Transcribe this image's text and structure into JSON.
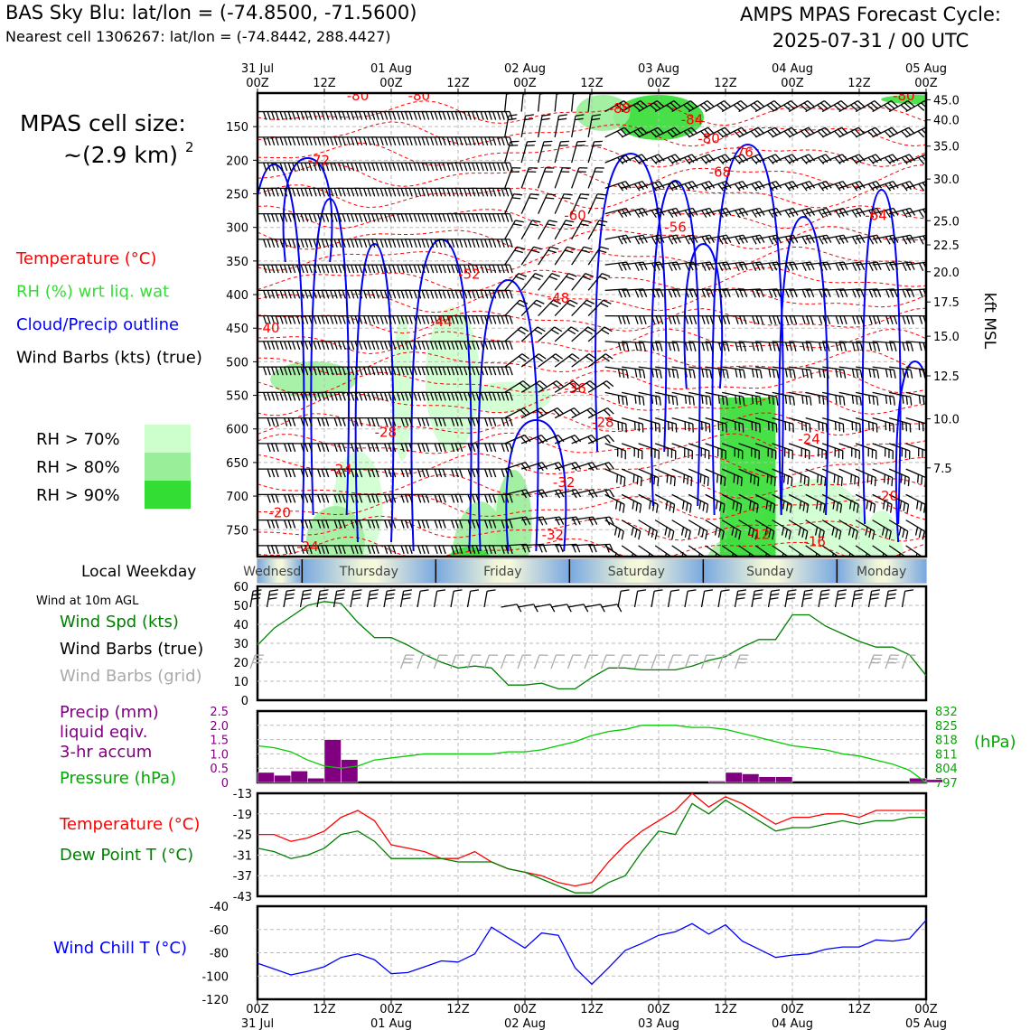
{
  "header": {
    "title_left": "BAS Sky Blu: lat/lon = (-74.8500, -71.5600)",
    "subtitle_left": "Nearest cell 1306267: lat/lon = (-74.8442, 288.4427)",
    "title_right_1": "AMPS MPAS Forecast Cycle:",
    "title_right_2": "2025-07-31 / 00 UTC"
  },
  "time_axis": {
    "hours": [
      0,
      12,
      24,
      36,
      48,
      60,
      72,
      84,
      96,
      108,
      120
    ],
    "hour_labels": [
      "00Z",
      "12Z",
      "00Z",
      "12Z",
      "00Z",
      "12Z",
      "00Z",
      "12Z",
      "00Z",
      "12Z",
      "00Z"
    ],
    "date_labels": [
      "31 Jul",
      "",
      "01 Aug",
      "",
      "02 Aug",
      "",
      "03 Aug",
      "",
      "04 Aug",
      "",
      "05 Aug"
    ]
  },
  "chart_data": [
    {
      "type": "contour",
      "name": "cross-section",
      "cell_size_label": "MPAS cell size:",
      "cell_size_value": "~(2.9 km)",
      "cell_size_exp": "2",
      "legend": [
        {
          "label": "Temperature (°C)",
          "color": "#ff0000"
        },
        {
          "label": "RH (%) wrt liq. wat",
          "color": "#33dd33"
        },
        {
          "label": "Cloud/Precip outline",
          "color": "#0000ff"
        },
        {
          "label": "Wind Barbs (kts) (true)",
          "color": "#000000"
        }
      ],
      "rh_legend": [
        {
          "label": "RH > 70%",
          "color": "#ccffcc"
        },
        {
          "label": "RH > 80%",
          "color": "#99ee99"
        },
        {
          "label": "RH > 90%",
          "color": "#33dd33"
        }
      ],
      "pressure_ticks": [
        150,
        200,
        250,
        300,
        350,
        400,
        450,
        500,
        550,
        600,
        650,
        700,
        750
      ],
      "p_range": [
        100,
        790
      ],
      "kft_ticks": [
        {
          "v": "45.0",
          "p": 110
        },
        {
          "v": "40.0",
          "p": 140
        },
        {
          "v": "35.0",
          "p": 179
        },
        {
          "v": "30.0",
          "p": 228
        },
        {
          "v": "25.0",
          "p": 290
        },
        {
          "v": "22.5",
          "p": 326
        },
        {
          "v": "20.0",
          "p": 366
        },
        {
          "v": "17.5",
          "p": 411
        },
        {
          "v": "15.0",
          "p": 462
        },
        {
          "v": "12.5",
          "p": 521
        },
        {
          "v": "10.0",
          "p": 585
        },
        {
          "v": "7.5",
          "p": 658
        }
      ],
      "right_axis_label": "kft MSL",
      "temp_labels": [
        {
          "t": "-80",
          "h": 18,
          "p": 104
        },
        {
          "t": "-80",
          "h": 29,
          "p": 104
        },
        {
          "t": "-88",
          "h": 65,
          "p": 123
        },
        {
          "t": "-84",
          "h": 78,
          "p": 140
        },
        {
          "t": "-80",
          "h": 81,
          "p": 168
        },
        {
          "t": "-76",
          "h": 87,
          "p": 188
        },
        {
          "t": "-68",
          "h": 83,
          "p": 218
        },
        {
          "t": "-80",
          "h": 116,
          "p": 104
        },
        {
          "t": "-72",
          "h": 11,
          "p": 200
        },
        {
          "t": "-60",
          "h": 57,
          "p": 282
        },
        {
          "t": "-56",
          "h": 75,
          "p": 300
        },
        {
          "t": "-64",
          "h": 111,
          "p": 282
        },
        {
          "t": "-52",
          "h": 38,
          "p": 370
        },
        {
          "t": "-48",
          "h": 54,
          "p": 405
        },
        {
          "t": "-44",
          "h": 33,
          "p": 440
        },
        {
          "t": "-40",
          "h": 2,
          "p": 450
        },
        {
          "t": "-36",
          "h": 57,
          "p": 540
        },
        {
          "t": "-28",
          "h": 23,
          "p": 605
        },
        {
          "t": "-28",
          "h": 62,
          "p": 590
        },
        {
          "t": "-24",
          "h": 15,
          "p": 660
        },
        {
          "t": "-24",
          "h": 99,
          "p": 615
        },
        {
          "t": "-32",
          "h": 55,
          "p": 680
        },
        {
          "t": "-20",
          "h": 4,
          "p": 725
        },
        {
          "t": "-20",
          "h": 113,
          "p": 700
        },
        {
          "t": "-24",
          "h": 9,
          "p": 775
        },
        {
          "t": "-32",
          "h": 53,
          "p": 758
        },
        {
          "t": "-12",
          "h": 90,
          "p": 757
        },
        {
          "t": "-16",
          "h": 100,
          "p": 768
        }
      ]
    },
    {
      "type": "band",
      "name": "local-weekday",
      "label": "Local Weekday",
      "days": [
        "Wednesday",
        "Thursday",
        "Friday",
        "Saturday",
        "Sunday",
        "Monday"
      ]
    },
    {
      "type": "line",
      "name": "surface-wind",
      "title": "Wind at 10m AGL",
      "legend": [
        {
          "label": "Wind Spd (kts)",
          "color": "#008000"
        },
        {
          "label": "Wind Barbs (true)",
          "color": "#000000"
        },
        {
          "label": "Wind Barbs (grid)",
          "color": "#aaaaaa"
        }
      ],
      "ylim": [
        0,
        60
      ],
      "yticks": [
        0,
        10,
        20,
        30,
        40,
        50,
        60
      ],
      "x": [
        0,
        3,
        6,
        9,
        12,
        15,
        18,
        21,
        24,
        27,
        30,
        33,
        36,
        39,
        42,
        45,
        48,
        51,
        54,
        57,
        60,
        63,
        66,
        69,
        72,
        75,
        78,
        81,
        84,
        87,
        90,
        93,
        96,
        99,
        102,
        105,
        108,
        111,
        114,
        117,
        120
      ],
      "series": [
        {
          "name": "Wind Spd (kts)",
          "values": [
            29,
            38,
            44,
            50,
            52,
            51,
            41,
            33,
            33,
            29,
            24,
            20,
            17,
            18,
            17,
            8,
            8,
            9,
            6,
            6,
            12,
            17,
            17,
            16,
            16,
            16,
            18,
            21,
            23,
            28,
            32,
            32,
            45,
            45,
            39,
            35,
            31,
            28,
            28,
            24,
            13
          ]
        }
      ]
    },
    {
      "type": "bar",
      "name": "precip-pressure",
      "legend": [
        {
          "label": "Precip (mm)",
          "color": "#800080"
        },
        {
          "label": "liquid eqiv.",
          "color": "#800080"
        },
        {
          "label": "3-hr accum",
          "color": "#800080"
        },
        {
          "label": "Pressure (hPa)",
          "color": "#00aa00"
        }
      ],
      "ylim": [
        0,
        2.5
      ],
      "yticks": [
        "0",
        "0.5",
        "1.0",
        "1.5",
        "2.0",
        "2.5"
      ],
      "y2lim": [
        797,
        832
      ],
      "y2ticks": [
        "797",
        "804",
        "811",
        "818",
        "825",
        "832"
      ],
      "y2label": "(hPa)",
      "x": [
        0,
        3,
        6,
        9,
        12,
        15,
        18,
        21,
        24,
        27,
        30,
        33,
        36,
        39,
        42,
        45,
        48,
        51,
        54,
        57,
        60,
        63,
        66,
        69,
        72,
        75,
        78,
        81,
        84,
        87,
        90,
        93,
        96,
        99,
        102,
        105,
        108,
        111,
        114,
        117,
        120
      ],
      "precip": [
        0.35,
        0.25,
        0.4,
        0.15,
        1.5,
        0.8,
        0,
        0,
        0,
        0,
        0,
        0,
        0,
        0,
        0,
        0,
        0,
        0,
        0,
        0,
        0,
        0,
        0,
        0,
        0,
        0,
        0,
        0.05,
        0.35,
        0.3,
        0.2,
        0.2,
        0,
        0,
        0,
        0,
        0,
        0,
        0,
        0.15,
        0.1
      ],
      "series": [
        {
          "name": "Pressure (hPa)",
          "values": [
            815,
            814,
            812,
            808,
            805,
            804,
            805,
            808,
            809,
            810,
            811,
            811,
            811,
            811,
            811,
            812,
            812,
            813,
            815,
            817,
            820,
            822,
            823,
            825,
            825,
            825,
            824,
            824,
            823,
            821,
            819,
            817,
            815,
            814,
            813,
            811,
            810,
            808,
            806,
            803,
            797
          ]
        }
      ]
    },
    {
      "type": "line",
      "name": "temperature",
      "legend": [
        {
          "label": "Temperature (°C)",
          "color": "#ff0000"
        },
        {
          "label": "Dew Point T (°C)",
          "color": "#008000"
        }
      ],
      "ylim": [
        -43,
        -13
      ],
      "yticks": [
        -43,
        -37,
        -31,
        -25,
        -19,
        -13
      ],
      "x": [
        0,
        3,
        6,
        9,
        12,
        15,
        18,
        21,
        24,
        27,
        30,
        33,
        36,
        39,
        42,
        45,
        48,
        51,
        54,
        57,
        60,
        63,
        66,
        69,
        72,
        75,
        78,
        81,
        84,
        87,
        90,
        93,
        96,
        99,
        102,
        105,
        108,
        111,
        114,
        117,
        120
      ],
      "series": [
        {
          "name": "Temperature (°C)",
          "values": [
            -25,
            -25,
            -27,
            -26,
            -24,
            -20,
            -18,
            -21,
            -28,
            -29,
            -30,
            -32,
            -32,
            -30,
            -33,
            -35,
            -36,
            -37,
            -39,
            -40,
            -39,
            -33,
            -28,
            -24,
            -21,
            -18,
            -13,
            -17,
            -14,
            -16,
            -19,
            -22,
            -20,
            -20,
            -19,
            -19,
            -20,
            -18,
            -18,
            -18,
            -18
          ]
        },
        {
          "name": "Dew Point T (°C)",
          "values": [
            -29,
            -30,
            -32,
            -31,
            -29,
            -25,
            -24,
            -27,
            -32,
            -32,
            -32,
            -32,
            -33,
            -33,
            -33,
            -35,
            -36,
            -38,
            -40,
            -42,
            -42,
            -39,
            -37,
            -30,
            -24,
            -25,
            -16,
            -19,
            -15,
            -18,
            -21,
            -24,
            -23,
            -23,
            -22,
            -21,
            -22,
            -21,
            -21,
            -20,
            -20
          ]
        }
      ]
    },
    {
      "type": "line",
      "name": "wind-chill",
      "legend": [
        {
          "label": "Wind Chill T (°C)",
          "color": "#0000ff"
        }
      ],
      "ylim": [
        -120,
        -40
      ],
      "yticks": [
        -120,
        -100,
        -80,
        -60,
        -40
      ],
      "x": [
        0,
        3,
        6,
        9,
        12,
        15,
        18,
        21,
        24,
        27,
        30,
        33,
        36,
        39,
        42,
        45,
        48,
        51,
        54,
        57,
        60,
        63,
        66,
        69,
        72,
        75,
        78,
        81,
        84,
        87,
        90,
        93,
        96,
        99,
        102,
        105,
        108,
        111,
        114,
        117,
        120
      ],
      "series": [
        {
          "name": "Wind Chill T (°C)",
          "values": [
            -89,
            -94,
            -99,
            -96,
            -92,
            -84,
            -81,
            -86,
            -98,
            -97,
            -92,
            -87,
            -88,
            -81,
            -58,
            -67,
            -76,
            -63,
            -65,
            -93,
            -107,
            -93,
            -78,
            -72,
            -65,
            -62,
            -55,
            -64,
            -56,
            -70,
            -77,
            -84,
            -82,
            -81,
            -77,
            -75,
            -75,
            -69,
            -70,
            -68,
            -52
          ]
        }
      ]
    }
  ]
}
